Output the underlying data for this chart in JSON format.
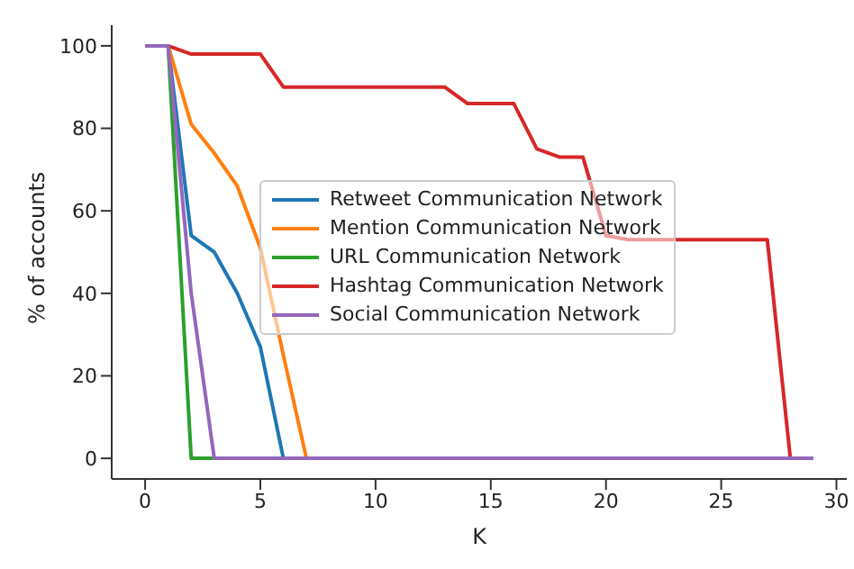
{
  "chart_data": {
    "type": "line",
    "xlabel": "K",
    "ylabel": "% of accounts",
    "x": [
      0,
      1,
      2,
      3,
      4,
      5,
      6,
      7,
      8,
      9,
      10,
      11,
      12,
      13,
      14,
      15,
      16,
      17,
      18,
      19,
      20,
      21,
      22,
      23,
      24,
      25,
      26,
      27,
      28,
      29
    ],
    "series": [
      {
        "name": "Retweet Communication Network",
        "color": "#1f77b4",
        "values": [
          null,
          100,
          54,
          50,
          40,
          27,
          0,
          0,
          null,
          null,
          null,
          null,
          null,
          null,
          null,
          null,
          null,
          null,
          null,
          null,
          null,
          null,
          null,
          null,
          null,
          null,
          null,
          null,
          null,
          null
        ]
      },
      {
        "name": "Mention Communication Network",
        "color": "#ff7f0e",
        "values": [
          null,
          100,
          81,
          74,
          66,
          51,
          25,
          0,
          0,
          null,
          null,
          null,
          null,
          null,
          null,
          null,
          null,
          null,
          null,
          null,
          null,
          null,
          null,
          null,
          null,
          null,
          null,
          null,
          null,
          null
        ]
      },
      {
        "name": "URL Communication Network",
        "color": "#2ca02c",
        "values": [
          null,
          100,
          0,
          0,
          null,
          null,
          null,
          null,
          null,
          null,
          null,
          null,
          null,
          null,
          null,
          null,
          null,
          null,
          null,
          null,
          null,
          null,
          null,
          null,
          null,
          null,
          null,
          null,
          null,
          null
        ]
      },
      {
        "name": "Hashtag Communication Network",
        "color": "#d62728",
        "values": [
          null,
          100,
          98,
          98,
          98,
          98,
          90,
          90,
          90,
          90,
          90,
          90,
          90,
          90,
          86,
          86,
          86,
          75,
          73,
          73,
          54,
          53,
          53,
          53,
          53,
          53,
          53,
          53,
          0,
          null
        ]
      },
      {
        "name": "Social Communication Network",
        "color": "#9467bd",
        "values": [
          100,
          100,
          40,
          0,
          0,
          0,
          0,
          0,
          0,
          0,
          0,
          0,
          0,
          0,
          0,
          0,
          0,
          0,
          0,
          0,
          0,
          0,
          0,
          0,
          0,
          0,
          0,
          0,
          0,
          0
        ]
      }
    ],
    "xlim": [
      -1.45,
      30.45
    ],
    "xticks": [
      0,
      5,
      10,
      15,
      20,
      25,
      30
    ],
    "ylim": [
      -5,
      105
    ],
    "yticks": [
      0,
      20,
      40,
      60,
      80,
      100
    ],
    "legend": "center",
    "marker": "none",
    "line_style": "solid"
  }
}
